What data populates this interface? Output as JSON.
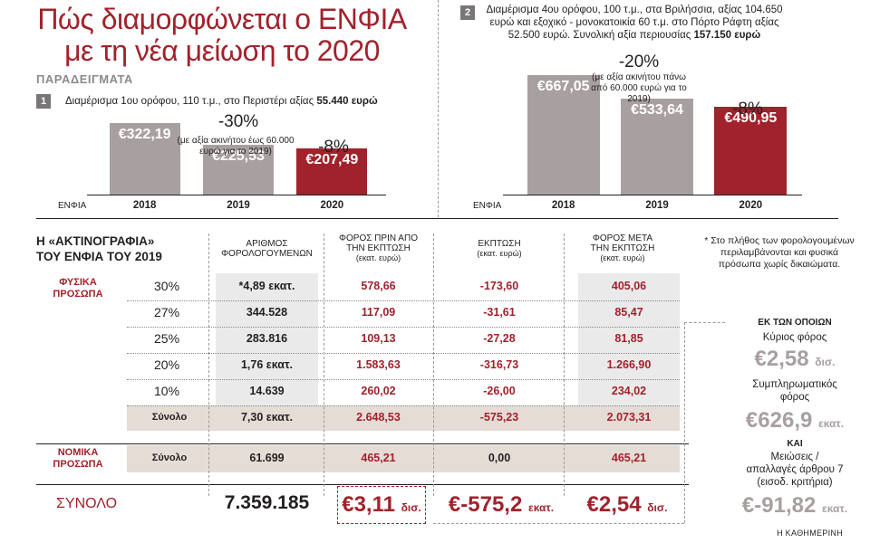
{
  "title_line1": "Πώς διαμορφώνεται ο ΕΝΦΙΑ",
  "title_line2": "με τη νέα μείωση το 2020",
  "examples_label": "ΠΑΡΑΔΕΙΓΜΑΤΑ",
  "example1": {
    "number": "1",
    "text_prefix": "Διαμέρισμα 1ου ορόφου, 110 τ.μ., στο Περιστέρι αξίας ",
    "text_bold": "55.440 ευρώ"
  },
  "example2": {
    "number": "2",
    "line1": "Διαμέρισμα 4ου ορόφου, 100 τ.μ.,  στα Βριλήσσια, αξίας 104.650",
    "line2": "ευρώ και εξοχικό - μονοκατοικία 60 τ.μ. στο Πόρτο Ράφτη αξίας",
    "line3_prefix": "52.500 ευρώ. Συνολική αξία περιουσίας ",
    "line3_bold": "157.150 ευρώ"
  },
  "chart_data": [
    {
      "type": "bar",
      "categories": [
        "2018",
        "2019",
        "2020"
      ],
      "values": [
        322.19,
        225.53,
        207.49
      ],
      "value_labels": [
        "€322,19",
        "€225,53",
        "€207,49"
      ],
      "xlabel": "ΕΝΦΙΑ",
      "annotations": [
        {
          "label": "-30%",
          "note": "(με αξία ακινήτου έως 60.000 ευρώ για το 2019)"
        },
        {
          "label": "-8%"
        }
      ]
    },
    {
      "type": "bar",
      "categories": [
        "2018",
        "2019",
        "2020"
      ],
      "values": [
        667.05,
        533.64,
        490.95
      ],
      "value_labels": [
        "€667,05",
        "€533,64",
        "€490,95"
      ],
      "xlabel": "ΕΝΦΙΑ",
      "annotations": [
        {
          "label": "-20%",
          "note": "(με αξία ακινήτου πάνω από 60.000 ευρώ για το 2019)"
        },
        {
          "label": "-8%"
        }
      ]
    }
  ],
  "colors": {
    "accent": "#a1222c",
    "grey_bar": "#a8a0a0",
    "tint": "#eaeaea",
    "total_row": "#e6dcd6"
  },
  "table": {
    "title_line1": "Η «ΑΚΤΙΝΟΓΡΑΦΙΑ»",
    "title_line2": "ΤΟΥ ΕΝΦΙΑ ΤΟΥ 2019",
    "headers": [
      {
        "l1": "ΑΡΙΘΜΟΣ",
        "l2": "ΦΟΡΟΛΟΓΟΥΜΕΝΩΝ",
        "sub": ""
      },
      {
        "l1": "ΦΟΡΟΣ ΠΡΙΝ ΑΠΟ",
        "l2": "ΤΗΝ ΕΚΠΤΩΣΗ",
        "sub": "(εκατ. ευρώ)"
      },
      {
        "l1": "ΕΚΠΤΩΣΗ",
        "l2": "",
        "sub": "(εκατ. ευρώ)"
      },
      {
        "l1": "ΦΟΡΟΣ ΜΕΤΑ",
        "l2": "ΤΗΝ ΕΚΠΤΩΣΗ",
        "sub": "(εκατ. ευρώ)"
      }
    ],
    "physical_label_l1": "ΦΥΣΙΚΑ",
    "physical_label_l2": "ΠΡΟΣΩΠΑ",
    "legal_label_l1": "ΝΟΜΙΚΑ",
    "legal_label_l2": "ΠΡΟΣΩΠΑ",
    "rows": [
      {
        "pct": "30%",
        "count": "*4,89 εκατ.",
        "before": "578,66",
        "discount": "-173,60",
        "after": "405,06"
      },
      {
        "pct": "27%",
        "count": "344.528",
        "before": "117,09",
        "discount": "-31,61",
        "after": "85,47"
      },
      {
        "pct": "25%",
        "count": "283.816",
        "before": "109,13",
        "discount": "-27,28",
        "after": "81,85"
      },
      {
        "pct": "20%",
        "count": "1,76 εκατ.",
        "before": "1.583,63",
        "discount": "-316,73",
        "after": "1.266,90"
      },
      {
        "pct": "10%",
        "count": "14.639",
        "before": "260,02",
        "discount": "-26,00",
        "after": "234,02"
      }
    ],
    "physical_total": {
      "label": "Σύνολο",
      "count": "7,30 εκατ.",
      "before": "2.648,53",
      "discount": "-575,23",
      "after": "2.073,31"
    },
    "legal_total": {
      "label": "Σύνολο",
      "count": "61.699",
      "before": "465,21",
      "discount": "0,00",
      "after": "465,21"
    },
    "grand_total": {
      "label": "ΣΥΝΟΛΟ",
      "count": "7.359.185",
      "before": "€3,11",
      "before_unit": "δισ.",
      "discount": "€-575,2",
      "discount_unit": "εκατ.",
      "after": "€2,54",
      "after_unit": "δισ."
    }
  },
  "sidebar": {
    "footnote": "* Στο πλήθος των φορολογουμένων περιλαμβάνονται και φυσικά πρόσωπα χωρίς δικαιώματα.",
    "heading": "ΕΚ ΤΩΝ ΟΠΟΙΩΝ",
    "item1_label": "Κύριος φόρος",
    "item1_value": "€2,58",
    "item1_unit": "δισ.",
    "item2_label_l1": "Συμπληρωματικός",
    "item2_label_l2": "φόρος",
    "item2_value": "€626,9",
    "item2_unit": "εκατ.",
    "and_label": "ΚΑΙ",
    "item3_label_l1": "Μειώσεις /",
    "item3_label_l2": "απαλλαγές άρθρου 7",
    "item3_label_l3": "(εισοδ. κριτήρια)",
    "item3_value": "€-91,82",
    "item3_unit": "εκατ."
  },
  "credit": "Η ΚΑΘΗΜΕΡΙΝΗ"
}
